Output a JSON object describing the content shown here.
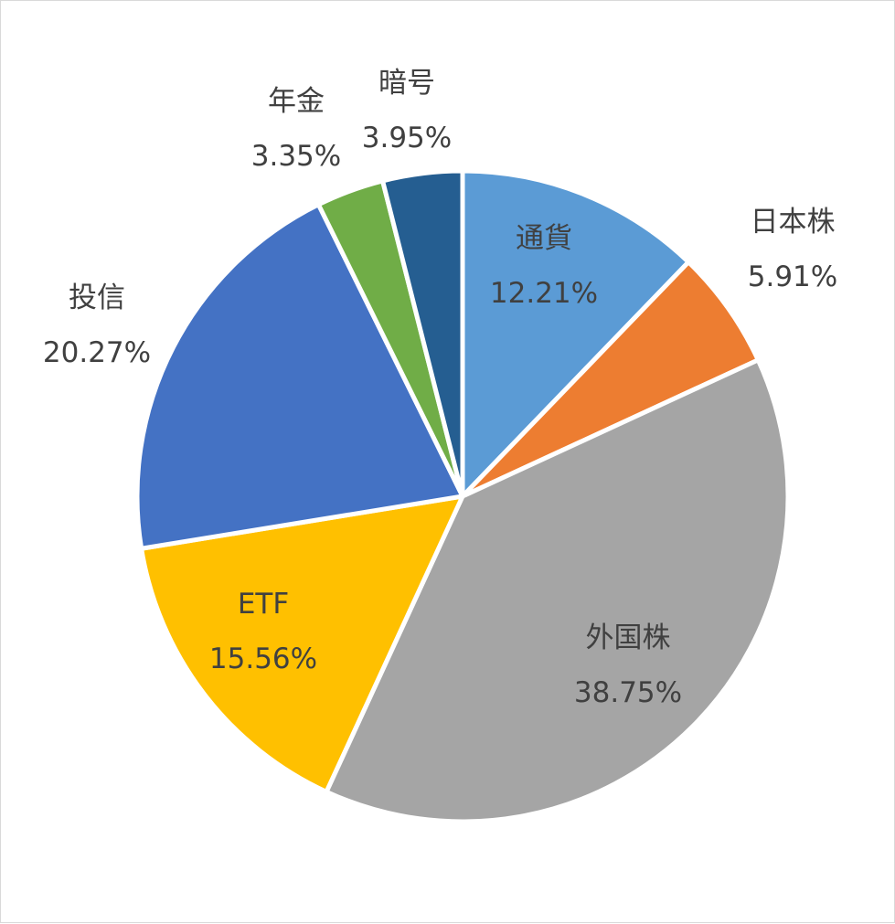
{
  "chart_data": {
    "type": "pie",
    "title": "",
    "slices": [
      {
        "label": "通貨",
        "value": 12.21,
        "display": "12.21%",
        "color": "#5B9BD5"
      },
      {
        "label": "日本株",
        "value": 5.91,
        "display": "5.91%",
        "color": "#ED7D31"
      },
      {
        "label": "外国株",
        "value": 38.75,
        "display": "38.75%",
        "color": "#A5A5A5"
      },
      {
        "label": "ETF",
        "value": 15.56,
        "display": "15.56%",
        "color": "#FFC000"
      },
      {
        "label": "投信",
        "value": 20.27,
        "display": "20.27%",
        "color": "#4472C4"
      },
      {
        "label": "年金",
        "value": 3.35,
        "display": "3.35%",
        "color": "#70AD47"
      },
      {
        "label": "暗号",
        "value": 3.95,
        "display": "3.95%",
        "color": "#255E91"
      }
    ],
    "start_angle_deg": 0,
    "direction": "clockwise",
    "legend": "none",
    "data_labels": "category-and-percent"
  }
}
